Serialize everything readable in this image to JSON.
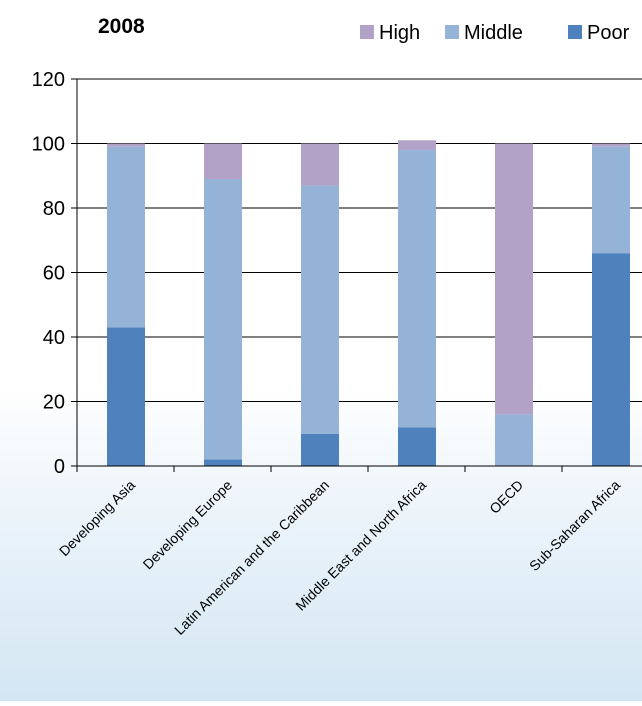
{
  "chart_data": {
    "type": "bar",
    "stacked": true,
    "title": "2008",
    "categories": [
      "Developing Asia",
      "Developing Europe",
      "Latin American and the Caribbean",
      "Middle East and North Africa",
      "OECD",
      "Sub-Saharan Africa"
    ],
    "series": [
      {
        "name": "Poor",
        "color": "#4f81bd",
        "values": [
          43,
          2,
          10,
          12,
          0,
          66
        ]
      },
      {
        "name": "Middle",
        "color": "#95b3d7",
        "values": [
          56,
          87,
          77,
          86,
          16,
          33
        ]
      },
      {
        "name": "High",
        "color": "#b3a2c7",
        "values": [
          1,
          11,
          13,
          3,
          84,
          1
        ]
      }
    ],
    "legend_order": [
      "High",
      "Middle",
      "Poor"
    ],
    "legend_position": "top-right",
    "ylim": [
      0,
      120
    ],
    "yticks": [
      0,
      20,
      40,
      60,
      80,
      100,
      120
    ],
    "grid": true,
    "xlabel": "",
    "ylabel": ""
  }
}
